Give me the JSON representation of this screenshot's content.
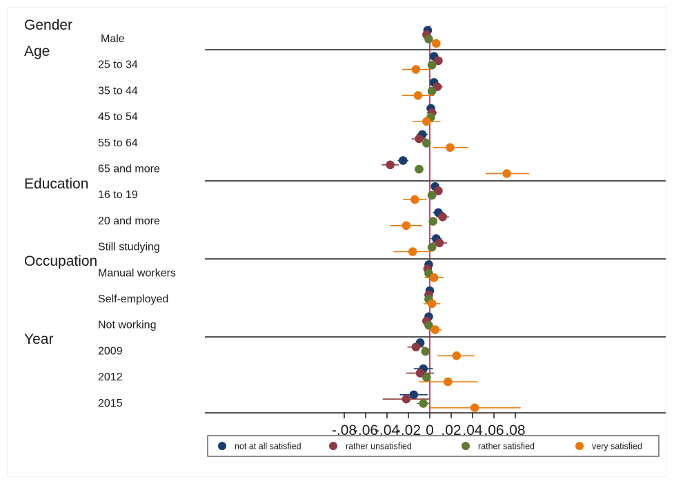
{
  "chart_data": {
    "type": "scatter",
    "subtype": "coefficient-plot-with-confidence-intervals",
    "title": "",
    "xlabel": "",
    "ylabel": "",
    "xlim": [
      -0.09,
      0.09
    ],
    "xticks": [
      -0.08,
      -0.06,
      -0.04,
      -0.02,
      0,
      0.02,
      0.04,
      0.06,
      0.08
    ],
    "xtick_labels": [
      "-.08",
      "-.06",
      "-.04",
      "-.02",
      "0",
      ".02",
      ".04",
      ".06",
      ".08"
    ],
    "grid": false,
    "reference_line": 0,
    "reference_line_color": "#c0143c",
    "legend_position": "bottom",
    "groups": [
      {
        "name": "Gender",
        "categories": [
          "Male"
        ]
      },
      {
        "name": "Age",
        "categories": [
          "25 to 34",
          "35 to 44",
          "45 to 54",
          "55 to 64",
          "65 and more"
        ]
      },
      {
        "name": "Education",
        "categories": [
          "16 to 19",
          "20 and more",
          "Still studying"
        ]
      },
      {
        "name": "Occupation",
        "categories": [
          "Manual workers",
          "Self-employed",
          "Not working"
        ]
      },
      {
        "name": "Year",
        "categories": [
          "2009",
          "2012",
          "2015"
        ]
      }
    ],
    "categories": [
      "Male",
      "25 to 34",
      "35 to 44",
      "45 to 54",
      "55 to 64",
      "65 and more",
      "16 to 19",
      "20 and more",
      "Still studying",
      "Manual workers",
      "Self-employed",
      "Not working",
      "2009",
      "2012",
      "2015"
    ],
    "series": [
      {
        "name": "not at all satisfied",
        "color": "#1b3d6e",
        "values": [
          -0.002,
          0.004,
          0.004,
          0.001,
          -0.007,
          -0.025,
          0.005,
          0.008,
          0.006,
          -0.001,
          0.0,
          -0.001,
          -0.009,
          -0.006,
          -0.015
        ],
        "ci_low": [
          -0.004,
          0.0,
          0.0,
          -0.003,
          -0.012,
          -0.03,
          0.001,
          0.003,
          0.001,
          -0.004,
          -0.003,
          -0.004,
          -0.012,
          -0.015,
          -0.028
        ],
        "ci_high": [
          0.0,
          0.008,
          0.008,
          0.005,
          -0.002,
          -0.02,
          0.009,
          0.013,
          0.011,
          0.002,
          0.003,
          0.002,
          -0.006,
          0.003,
          -0.002
        ]
      },
      {
        "name": "rather unsatisfied",
        "color": "#8e3b46",
        "values": [
          -0.003,
          0.008,
          0.007,
          0.002,
          -0.01,
          -0.037,
          0.008,
          0.012,
          0.009,
          -0.002,
          -0.001,
          -0.003,
          -0.013,
          -0.009,
          -0.022
        ],
        "ci_low": [
          -0.006,
          0.004,
          0.003,
          -0.003,
          -0.017,
          -0.045,
          0.004,
          0.006,
          0.002,
          -0.006,
          -0.005,
          -0.007,
          -0.021,
          -0.022,
          -0.044
        ],
        "ci_high": [
          0.0,
          0.012,
          0.012,
          0.007,
          -0.003,
          -0.029,
          0.012,
          0.018,
          0.016,
          0.002,
          0.003,
          0.001,
          -0.005,
          0.004,
          0.0
        ]
      },
      {
        "name": "rather satisfied",
        "color": "#5e7a35",
        "values": [
          -0.001,
          0.002,
          0.002,
          0.001,
          -0.003,
          -0.01,
          0.002,
          0.003,
          0.002,
          -0.001,
          -0.001,
          -0.001,
          -0.004,
          -0.003,
          -0.006
        ],
        "ci_low": [
          -0.002,
          0.0,
          0.0,
          -0.001,
          -0.005,
          -0.014,
          0.0,
          0.001,
          0.0,
          -0.003,
          -0.003,
          -0.003,
          -0.006,
          -0.006,
          -0.012
        ],
        "ci_high": [
          0.0,
          0.004,
          0.004,
          0.003,
          -0.001,
          -0.006,
          0.004,
          0.005,
          0.004,
          0.001,
          0.001,
          0.001,
          -0.002,
          0.0,
          0.0
        ]
      },
      {
        "name": "very satisfied",
        "color": "#e8790f",
        "values": [
          0.006,
          -0.013,
          -0.011,
          -0.003,
          0.019,
          0.072,
          -0.014,
          -0.022,
          -0.016,
          0.004,
          0.002,
          0.005,
          0.025,
          0.017,
          0.042
        ],
        "ci_low": [
          0.002,
          -0.026,
          -0.026,
          -0.016,
          0.003,
          0.052,
          -0.025,
          -0.037,
          -0.034,
          -0.005,
          -0.006,
          -0.001,
          0.007,
          -0.01,
          0.0
        ],
        "ci_high": [
          0.01,
          0.0,
          0.004,
          0.01,
          0.036,
          0.093,
          -0.003,
          -0.007,
          0.001,
          0.013,
          0.01,
          0.011,
          0.042,
          0.045,
          0.085
        ]
      }
    ]
  }
}
